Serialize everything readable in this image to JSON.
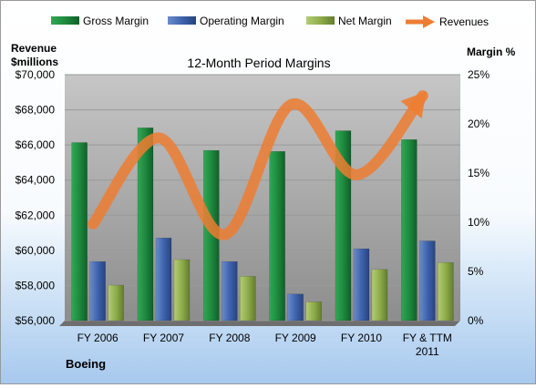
{
  "chart_data": {
    "type": "bar",
    "title": "12-Month Period Margins",
    "company": "Boeing",
    "left_axis_label": [
      "Revenue",
      "$millions"
    ],
    "right_axis_label": "Margin %",
    "categories": [
      [
        "FY 2006"
      ],
      [
        "FY 2007"
      ],
      [
        "FY 2008"
      ],
      [
        "FY 2009"
      ],
      [
        "FY 2010"
      ],
      [
        "FY & TTM",
        "2011"
      ]
    ],
    "left_axis": {
      "min": 56000,
      "max": 70000,
      "step": 2000,
      "tick_labels": [
        "$56,000",
        "$58,000",
        "$60,000",
        "$62,000",
        "$64,000",
        "$66,000",
        "$68,000",
        "$70,000"
      ]
    },
    "right_axis": {
      "min": 0,
      "max": 25,
      "step": 5,
      "tick_labels": [
        "0%",
        "5%",
        "10%",
        "15%",
        "20%",
        "25%"
      ]
    },
    "series": [
      {
        "name": "Gross Margin",
        "axis": "right",
        "kind": "bar",
        "color": "#1e8a3e",
        "values": [
          18.1,
          19.6,
          17.3,
          17.2,
          19.3,
          18.4
        ]
      },
      {
        "name": "Operating Margin",
        "axis": "right",
        "kind": "bar",
        "color": "#3f63ad",
        "values": [
          6.0,
          8.4,
          6.0,
          2.7,
          7.3,
          8.1
        ]
      },
      {
        "name": "Net Margin",
        "axis": "right",
        "kind": "bar",
        "color": "#8fad4b",
        "values": [
          3.6,
          6.2,
          4.5,
          1.9,
          5.2,
          5.9
        ]
      },
      {
        "name": "Revenues",
        "axis": "left",
        "kind": "line-arrow",
        "color": "#ed7d31",
        "values": [
          61500,
          66400,
          60900,
          68300,
          64300,
          68800
        ]
      }
    ],
    "grid": true,
    "legend_position": "top"
  }
}
